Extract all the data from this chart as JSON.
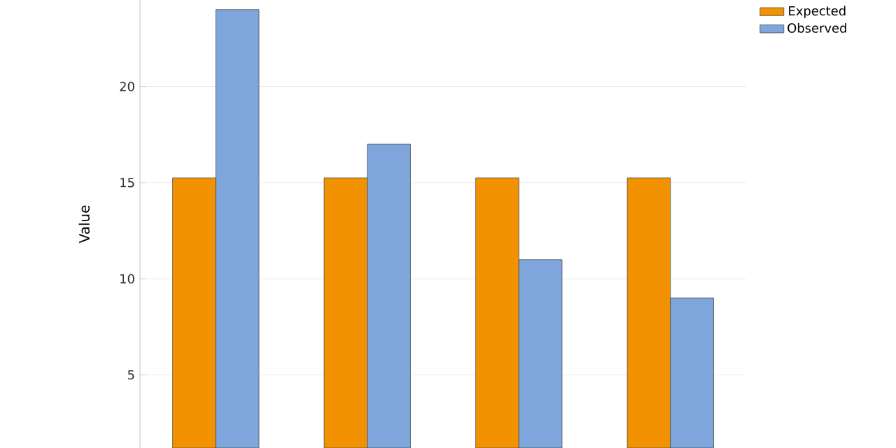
{
  "chart_data": {
    "type": "bar",
    "ylabel": "Value",
    "categories": [
      null,
      null,
      null,
      null
    ],
    "series": [
      {
        "name": "Expected",
        "color": "#f39200",
        "values": [
          15.25,
          15.25,
          15.25,
          15.25
        ]
      },
      {
        "name": "Observed",
        "color": "#7ea6dc",
        "values": [
          24,
          17,
          11,
          9
        ]
      }
    ],
    "ylim": [
      1.2,
      24.5
    ],
    "yticks": [
      5,
      10,
      15,
      20
    ],
    "grid": true,
    "legend": "top right"
  }
}
